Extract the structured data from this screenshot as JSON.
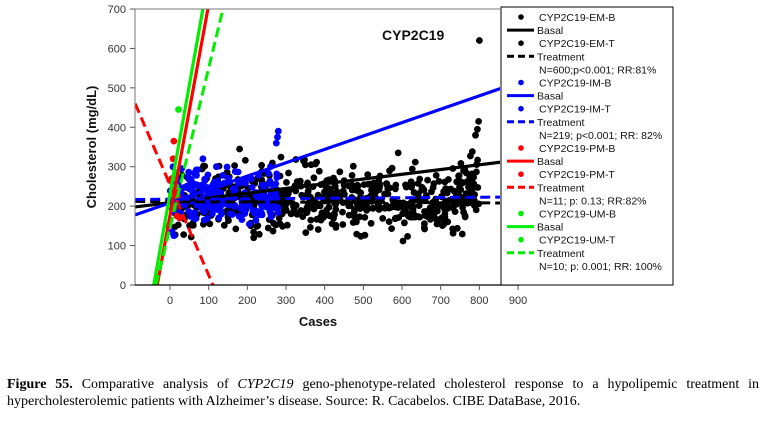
{
  "chart_data": {
    "type": "scatter",
    "title": "",
    "annotation": "CYP2C19",
    "xlabel": "Cases",
    "ylabel": "Cholesterol (mg/dL)",
    "xlim": [
      -90,
      860
    ],
    "ylim": [
      0,
      700
    ],
    "x_ticks": [
      0,
      100,
      200,
      300,
      400,
      500,
      600,
      700,
      800,
      900
    ],
    "y_ticks": [
      0,
      100,
      200,
      300,
      400,
      500,
      600,
      700
    ],
    "grid": false,
    "legend_position": "right",
    "colors": {
      "EM": "#000000",
      "IM": "#0000ff",
      "PM": "#ff0000",
      "UM": "#00ee00"
    },
    "legend": [
      {
        "kind": "marker",
        "color": "EM",
        "label": "CYP2C19-EM-B"
      },
      {
        "kind": "solid",
        "color": "EM",
        "label": "Basal"
      },
      {
        "kind": "marker",
        "color": "EM",
        "label": "CYP2C19-EM-T"
      },
      {
        "kind": "dashed",
        "color": "EM",
        "label": "Treatment"
      },
      {
        "kind": "text",
        "color": "EM",
        "label": "N=600;p<0.001; RR:81%"
      },
      {
        "kind": "marker",
        "color": "IM",
        "label": "CYP2C19-IM-B"
      },
      {
        "kind": "solid",
        "color": "IM",
        "label": "Basal"
      },
      {
        "kind": "marker",
        "color": "IM",
        "label": "CYP2C19-IM-T"
      },
      {
        "kind": "dashed",
        "color": "IM",
        "label": "Treatment"
      },
      {
        "kind": "text",
        "color": "IM",
        "label": "N=219; p<0.001; RR: 82%"
      },
      {
        "kind": "marker",
        "color": "PM",
        "label": "CYP2C19-PM-B"
      },
      {
        "kind": "solid",
        "color": "PM",
        "label": "Basal"
      },
      {
        "kind": "marker",
        "color": "PM",
        "label": "CYP2C19-PM-T"
      },
      {
        "kind": "dashed",
        "color": "PM",
        "label": "Treatment"
      },
      {
        "kind": "text",
        "color": "PM",
        "label": "N=11; p: 0.13; RR:82%"
      },
      {
        "kind": "marker",
        "color": "UM",
        "label": "CYP2C19-UM-B"
      },
      {
        "kind": "solid",
        "color": "UM",
        "label": "Basal"
      },
      {
        "kind": "marker",
        "color": "UM",
        "label": "CYP2C19-UM-T"
      },
      {
        "kind": "dashed",
        "color": "UM",
        "label": "Treatment"
      },
      {
        "kind": "text",
        "color": "UM",
        "label": "N=10; p: 0.001; RR: 100%"
      }
    ],
    "regression_lines": [
      {
        "name": "EM-Basal",
        "group": "EM",
        "style": "solid",
        "from": [
          -90,
          198
        ],
        "to": [
          860,
          312
        ]
      },
      {
        "name": "EM-Treatment",
        "group": "EM",
        "style": "dashed",
        "from": [
          -90,
          212
        ],
        "to": [
          860,
          208
        ]
      },
      {
        "name": "IM-Basal",
        "group": "IM",
        "style": "solid",
        "from": [
          -90,
          178
        ],
        "to": [
          860,
          500
        ]
      },
      {
        "name": "IM-Treatment",
        "group": "IM",
        "style": "dashed",
        "from": [
          -90,
          217
        ],
        "to": [
          860,
          223
        ]
      },
      {
        "name": "PM-Basal",
        "group": "PM",
        "style": "solid",
        "from": [
          -33,
          0
        ],
        "to": [
          98,
          700
        ]
      },
      {
        "name": "PM-Treatment",
        "group": "PM",
        "style": "dashed",
        "from": [
          -90,
          460
        ],
        "to": [
          111,
          0
        ]
      },
      {
        "name": "UM-Basal",
        "group": "UM",
        "style": "solid",
        "from": [
          -42,
          0
        ],
        "to": [
          85,
          700
        ]
      },
      {
        "name": "UM-Treatment",
        "group": "UM",
        "style": "dashed",
        "from": [
          -36,
          0
        ],
        "to": [
          137,
          700
        ]
      }
    ],
    "series": [
      {
        "name": "CYP2C19-EM",
        "group": "EM",
        "n": 600,
        "x_range": [
          10,
          800
        ],
        "y_center": 215,
        "y_spread": 75,
        "outliers": [
          [
            800,
            620
          ],
          [
            798,
            415
          ],
          [
            795,
            395
          ],
          [
            790,
            380
          ],
          [
            180,
            345
          ],
          [
            590,
            335
          ],
          [
            345,
            315
          ],
          [
            365,
            305
          ]
        ]
      },
      {
        "name": "CYP2C19-IM",
        "group": "IM",
        "n": 219,
        "x_range": [
          0,
          280
        ],
        "y_center": 225,
        "y_spread": 55,
        "outliers": [
          [
            280,
            390
          ],
          [
            278,
            375
          ],
          [
            275,
            360
          ],
          [
            260,
            300
          ],
          [
            120,
            300
          ],
          [
            85,
            320
          ],
          [
            30,
            295
          ],
          [
            10,
            125
          ],
          [
            5,
            135
          ]
        ]
      },
      {
        "name": "CYP2C19-PM",
        "group": "PM",
        "n": 11,
        "points": [
          [
            10,
            365
          ],
          [
            8,
            320
          ],
          [
            5,
            270
          ],
          [
            0,
            265
          ],
          [
            15,
            240
          ],
          [
            12,
            215
          ],
          [
            3,
            200
          ],
          [
            10,
            195
          ],
          [
            18,
            175
          ],
          [
            25,
            170
          ],
          [
            20,
            225
          ]
        ]
      },
      {
        "name": "CYP2C19-UM",
        "group": "UM",
        "n": 10,
        "points": [
          [
            22,
            445
          ],
          [
            18,
            285
          ],
          [
            12,
            270
          ],
          [
            8,
            245
          ],
          [
            5,
            230
          ],
          [
            10,
            215
          ],
          [
            2,
            205
          ],
          [
            8,
            195
          ],
          [
            -5,
            150
          ],
          [
            15,
            250
          ]
        ]
      }
    ]
  },
  "caption": {
    "figure_label": "Figure 55.",
    "text_before_gene": " Comparative analysis of ",
    "gene": "CYP2C19",
    "text_after_gene": " geno-phenotype-related cholesterol response to a hypolipemic treatment in hypercholesterolemic patients with Alzheimer’s disease. Source: R. Cacabelos. CIBE DataBase, 2016."
  }
}
